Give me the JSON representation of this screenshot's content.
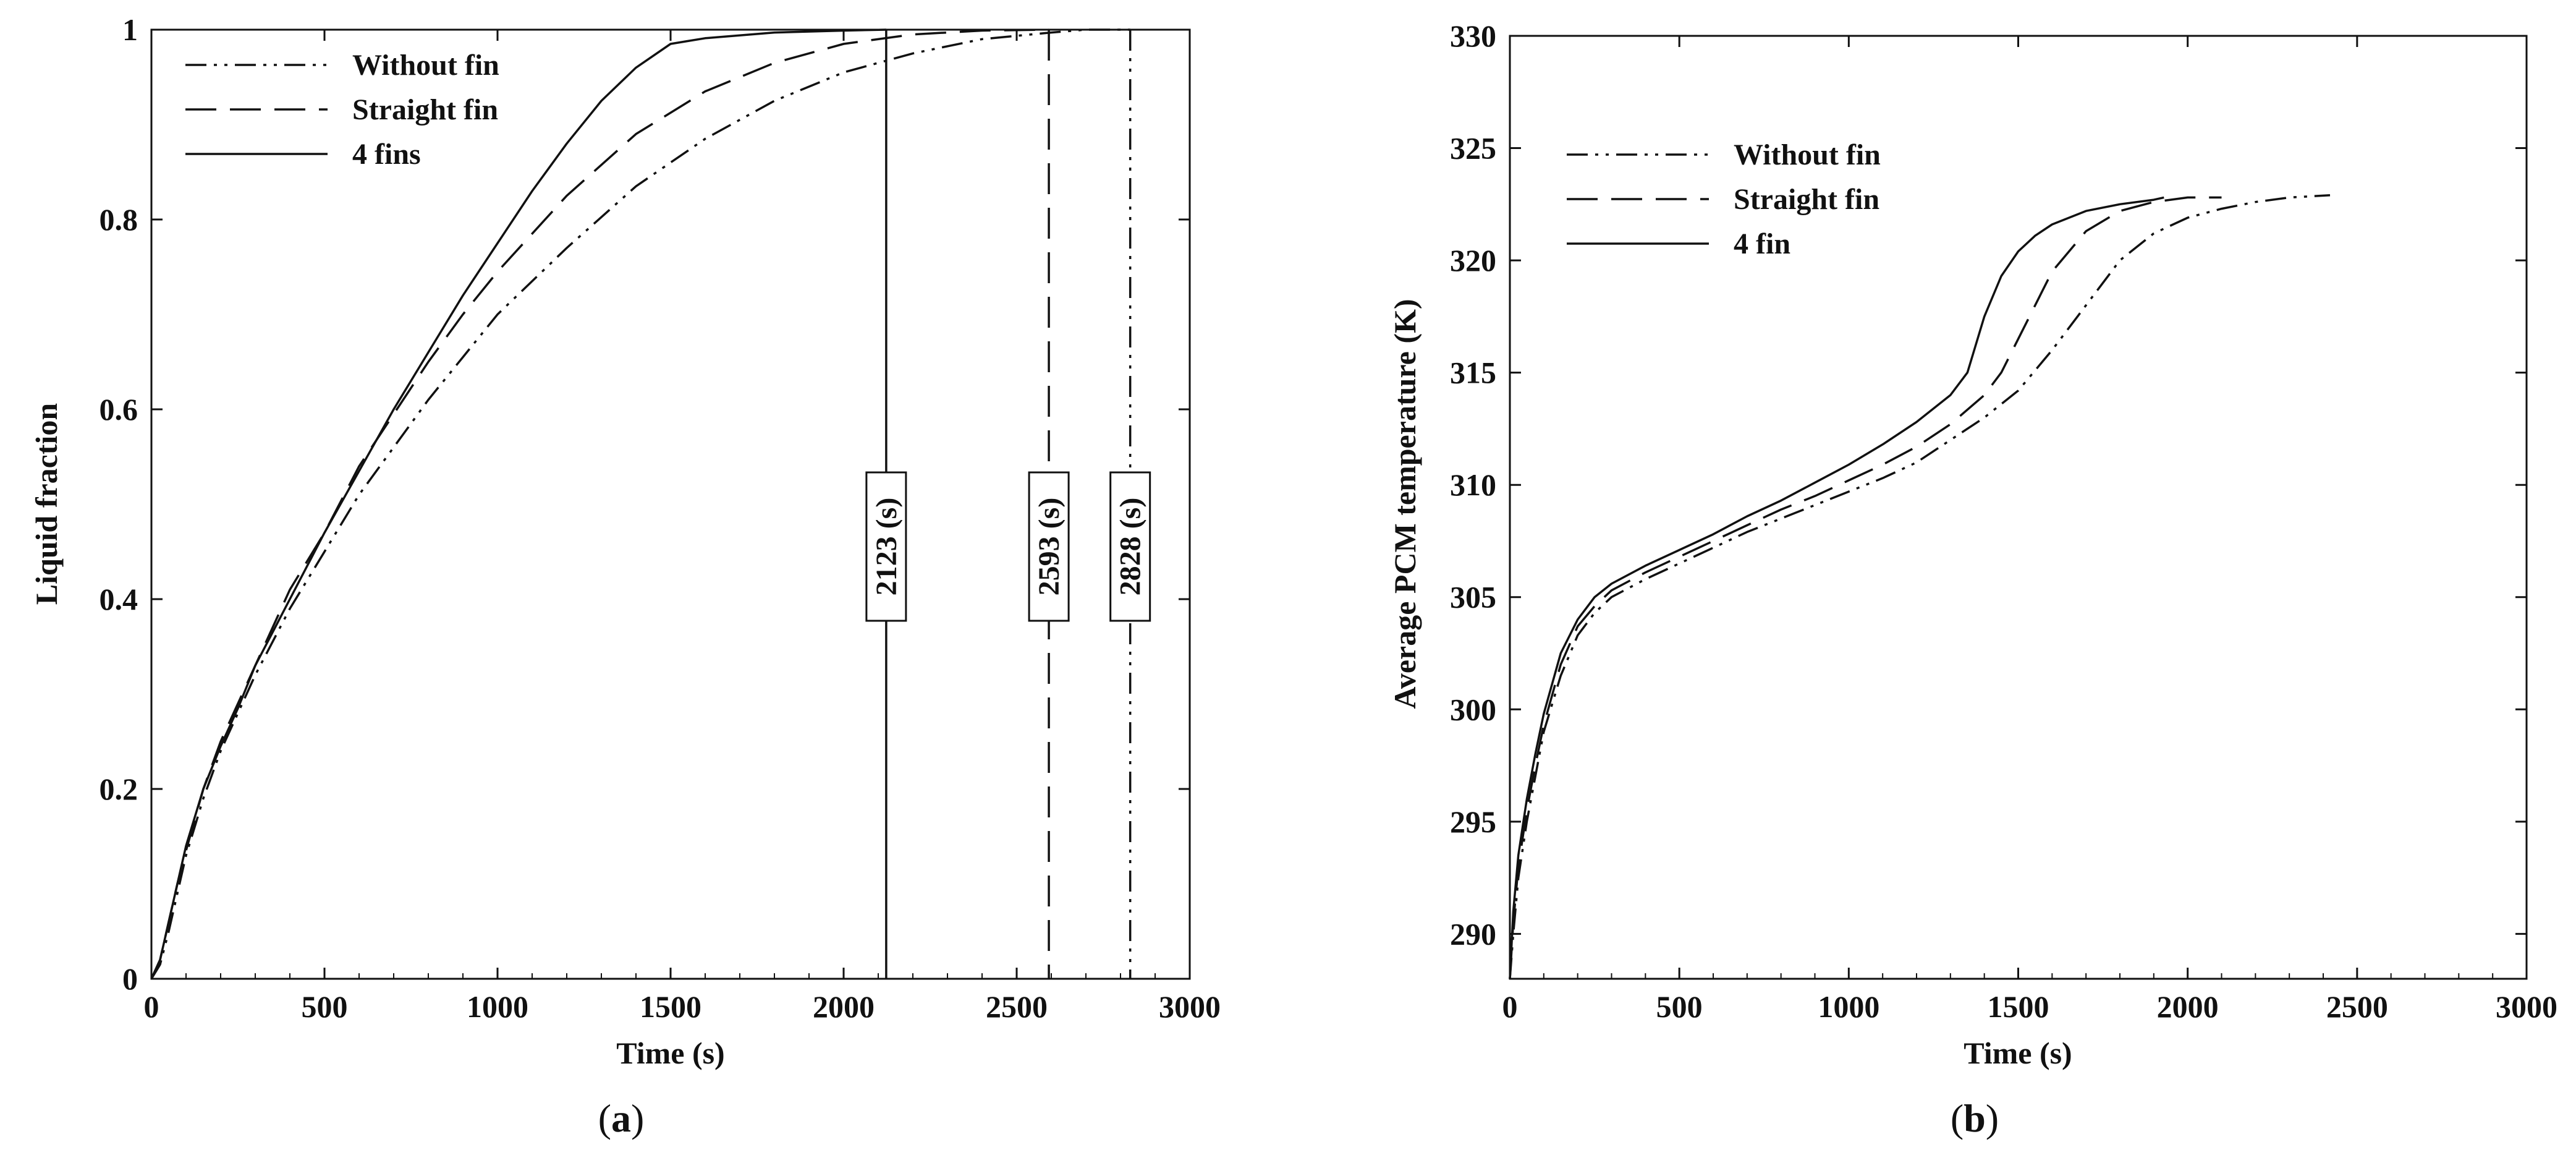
{
  "chart_data": [
    {
      "id": "a",
      "type": "line",
      "panel_label": "a",
      "title": "",
      "xlabel": "Time (s)",
      "ylabel": "Liquid fraction",
      "xlim": [
        0,
        3000
      ],
      "ylim": [
        0,
        1
      ],
      "xticks": [
        0,
        500,
        1000,
        1500,
        2000,
        2500,
        3000
      ],
      "yticks": [
        0,
        0.2,
        0.4,
        0.6,
        0.8,
        1
      ],
      "ytick_labels": [
        "0",
        "0.2",
        "0.4",
        "0.6",
        "0.8",
        "1"
      ],
      "grid": false,
      "legend_position": "top-left",
      "series": [
        {
          "name": "Without fin",
          "style": "dashdotdot",
          "x": [
            0,
            25,
            50,
            75,
            100,
            150,
            200,
            250,
            300,
            400,
            500,
            600,
            700,
            800,
            900,
            1000,
            1200,
            1400,
            1600,
            1800,
            2000,
            2200,
            2400,
            2600,
            2700,
            2828
          ],
          "y": [
            0,
            0.015,
            0.05,
            0.09,
            0.13,
            0.19,
            0.24,
            0.28,
            0.32,
            0.39,
            0.45,
            0.51,
            0.56,
            0.61,
            0.655,
            0.7,
            0.77,
            0.835,
            0.885,
            0.925,
            0.955,
            0.975,
            0.99,
            0.997,
            1.0,
            1.0
          ]
        },
        {
          "name": "Straight fin",
          "style": "longdash",
          "x": [
            0,
            25,
            50,
            75,
            100,
            150,
            200,
            250,
            300,
            400,
            500,
            600,
            700,
            800,
            900,
            1000,
            1200,
            1400,
            1600,
            1800,
            2000,
            2200,
            2400,
            2593
          ],
          "y": [
            0,
            0.02,
            0.06,
            0.1,
            0.135,
            0.2,
            0.25,
            0.29,
            0.33,
            0.41,
            0.47,
            0.54,
            0.595,
            0.65,
            0.7,
            0.745,
            0.825,
            0.89,
            0.935,
            0.965,
            0.985,
            0.995,
            0.999,
            1.0
          ]
        },
        {
          "name": "4 fins",
          "style": "solid",
          "x": [
            0,
            25,
            50,
            75,
            100,
            150,
            200,
            250,
            300,
            400,
            500,
            600,
            700,
            800,
            900,
            1000,
            1100,
            1200,
            1300,
            1400,
            1500,
            1550,
            1600,
            1800,
            2000,
            2123
          ],
          "y": [
            0,
            0.02,
            0.06,
            0.1,
            0.14,
            0.2,
            0.245,
            0.285,
            0.33,
            0.4,
            0.47,
            0.535,
            0.6,
            0.66,
            0.72,
            0.775,
            0.83,
            0.88,
            0.925,
            0.96,
            0.985,
            0.988,
            0.991,
            0.997,
            0.999,
            1.0
          ]
        }
      ],
      "annotations": [
        {
          "label": "2123 (s)",
          "x": 2123,
          "style": "solid"
        },
        {
          "label": "2593 (s)",
          "x": 2593,
          "style": "longdash"
        },
        {
          "label": "2828 (s)",
          "x": 2828,
          "style": "dashdotdot"
        }
      ]
    },
    {
      "id": "b",
      "type": "line",
      "panel_label": "b",
      "title": "",
      "xlabel": "Time (s)",
      "ylabel": "Average PCM temperature (K)",
      "xlim": [
        0,
        3000
      ],
      "ylim": [
        288,
        330
      ],
      "xticks": [
        0,
        500,
        1000,
        1500,
        2000,
        2500,
        3000
      ],
      "yticks": [
        290,
        295,
        300,
        305,
        310,
        315,
        320,
        325,
        330
      ],
      "ytick_labels": [
        "290",
        "295",
        "300",
        "305",
        "310",
        "315",
        "320",
        "325",
        "330"
      ],
      "grid": false,
      "legend_position": "top-left",
      "series": [
        {
          "name": "Without fin",
          "style": "dashdotdot",
          "x": [
            0,
            10,
            25,
            50,
            75,
            100,
            150,
            200,
            250,
            300,
            400,
            500,
            600,
            700,
            800,
            900,
            1000,
            1100,
            1200,
            1300,
            1400,
            1500,
            1600,
            1700,
            1800,
            1900,
            2000,
            2100,
            2200,
            2300,
            2420
          ],
          "y": [
            288,
            290,
            292.5,
            295,
            297,
            299,
            301.5,
            303.3,
            304.3,
            305,
            305.8,
            306.5,
            307.2,
            307.9,
            308.5,
            309.1,
            309.7,
            310.3,
            311,
            312,
            313,
            314.2,
            316,
            318,
            320,
            321.2,
            321.9,
            322.3,
            322.6,
            322.8,
            322.9
          ]
        },
        {
          "name": "Straight fin",
          "style": "longdash",
          "x": [
            0,
            10,
            25,
            50,
            75,
            100,
            150,
            200,
            250,
            300,
            400,
            500,
            600,
            700,
            800,
            900,
            1000,
            1100,
            1200,
            1300,
            1400,
            1450,
            1500,
            1600,
            1700,
            1800,
            1900,
            2000,
            2100
          ],
          "y": [
            288,
            290.5,
            293,
            295.5,
            297.5,
            299.3,
            302,
            303.7,
            304.6,
            305.3,
            306.1,
            306.8,
            307.5,
            308.2,
            308.9,
            309.5,
            310.2,
            310.9,
            311.7,
            312.7,
            314,
            315,
            316.5,
            319.5,
            321.3,
            322.2,
            322.6,
            322.8,
            322.8
          ]
        },
        {
          "name": "4 fin",
          "style": "solid",
          "x": [
            0,
            10,
            25,
            50,
            75,
            100,
            150,
            200,
            250,
            300,
            400,
            500,
            600,
            700,
            800,
            900,
            1000,
            1100,
            1200,
            1300,
            1350,
            1400,
            1450,
            1500,
            1550,
            1600,
            1700,
            1800,
            1900,
            1930
          ],
          "y": [
            288,
            291,
            293.5,
            296,
            298,
            299.8,
            302.5,
            304,
            305,
            305.6,
            306.4,
            307.1,
            307.8,
            308.6,
            309.3,
            310.1,
            310.9,
            311.8,
            312.8,
            314,
            315,
            317.5,
            319.3,
            320.4,
            321.1,
            321.6,
            322.2,
            322.5,
            322.7,
            322.8
          ]
        }
      ]
    }
  ]
}
